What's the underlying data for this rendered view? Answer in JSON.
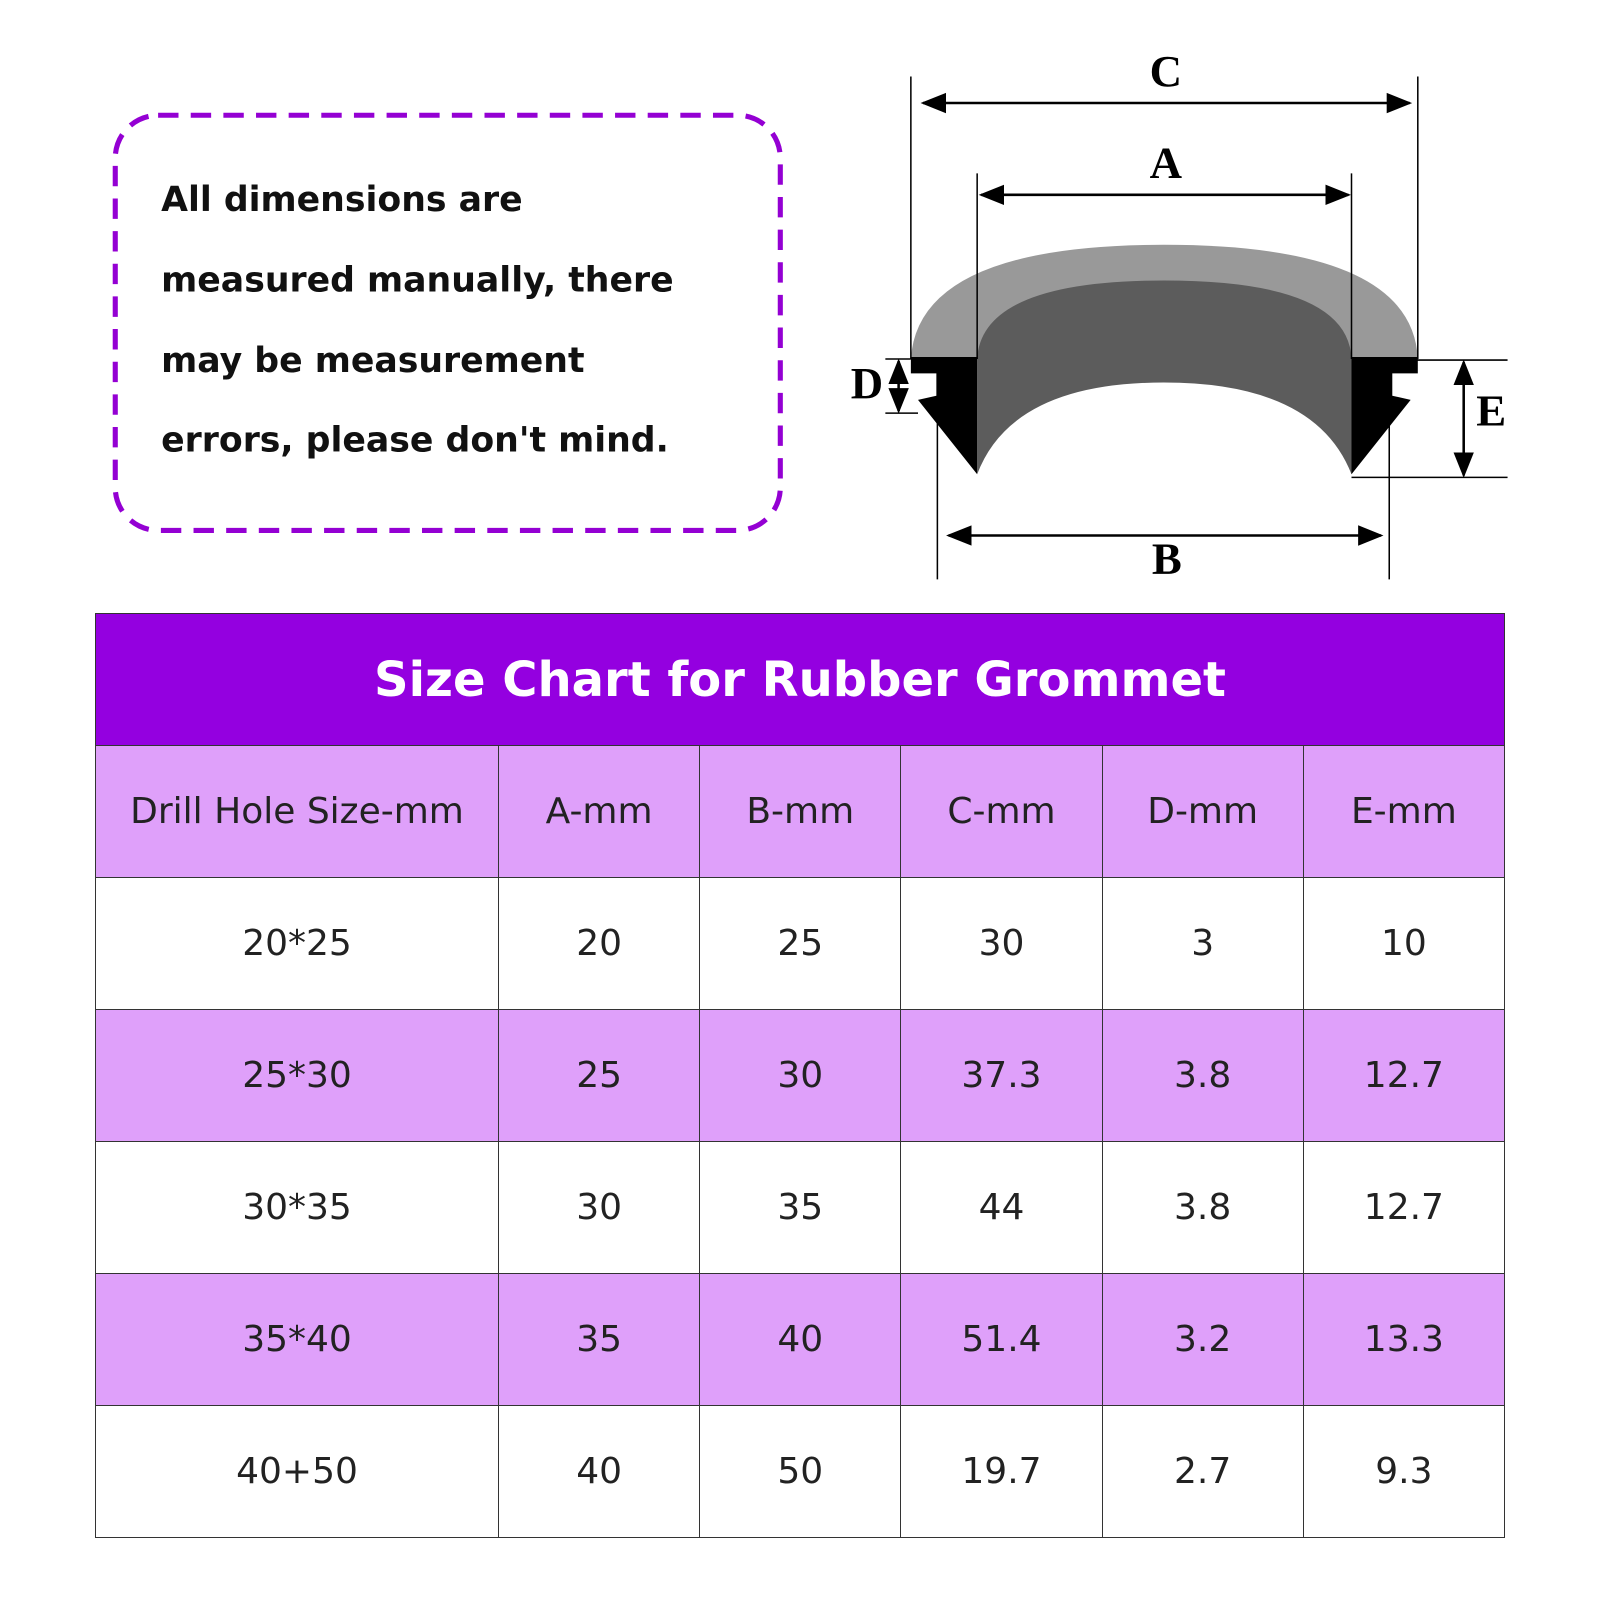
{
  "note": {
    "lines": [
      "All dimensions are",
      "measured manually, there",
      "may be measurement",
      "errors, please don't mind."
    ]
  },
  "diagram": {
    "labels": {
      "c": "C",
      "a": "A",
      "d": "D",
      "e": "E",
      "b": "B"
    }
  },
  "table": {
    "title": "Size Chart for Rubber Grommet",
    "header": [
      "Drill Hole Size-mm",
      "A-mm",
      "B-mm",
      "C-mm",
      "D-mm",
      "E-mm"
    ],
    "rows": [
      [
        "20*25",
        "20",
        "25",
        "30",
        "3",
        "10"
      ],
      [
        "25*30",
        "25",
        "30",
        "37.3",
        "3.8",
        "12.7"
      ],
      [
        "30*35",
        "30",
        "35",
        "44",
        "3.8",
        "12.7"
      ],
      [
        "35*40",
        "35",
        "40",
        "51.4",
        "3.2",
        "13.3"
      ],
      [
        "40+50",
        "40",
        "50",
        "19.7",
        "2.7",
        "9.3"
      ]
    ]
  }
}
